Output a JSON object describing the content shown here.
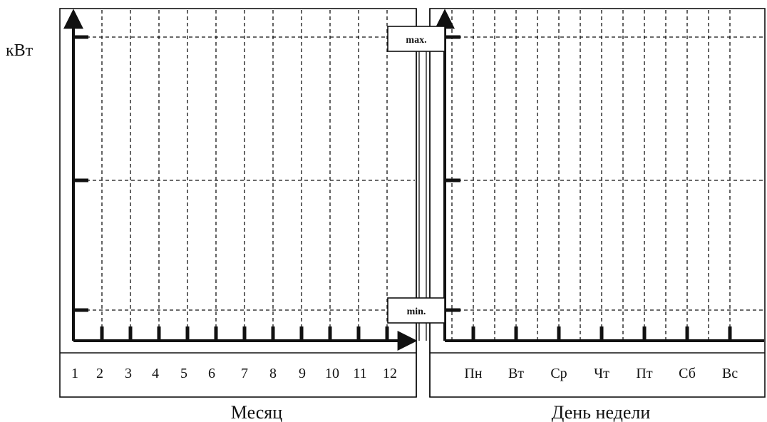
{
  "y_unit": "кВт",
  "levels": {
    "max": "max.",
    "min": "min."
  },
  "left_panel": {
    "xlabel": "Месяц",
    "months": [
      "1",
      "2",
      "3",
      "4",
      "5",
      "6",
      "7",
      "8",
      "9",
      "10",
      "11",
      "12"
    ]
  },
  "right_panel": {
    "xlabel": "День недели",
    "days": [
      "Пн",
      "Вт",
      "Ср",
      "Чт",
      "Пт",
      "Сб",
      "Вс"
    ]
  }
}
